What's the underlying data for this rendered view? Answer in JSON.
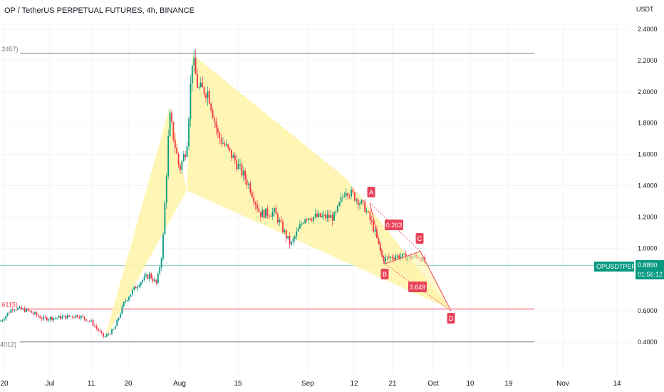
{
  "header": {
    "title": "OP / TetherUS PERPETUAL FUTURES, 4h, BINANCE",
    "unit": "USDT"
  },
  "price_badge": {
    "symbol": "OPUSDTPERP",
    "price": "0.8890",
    "countdown": "01:56:12"
  },
  "level_labels": [
    ".2457)",
    ".6115)",
    "4012)"
  ],
  "colors": {
    "up": "#089981",
    "down": "#f23645",
    "pattern_fill": "#fff3a8",
    "pattern_line": "#e8435a",
    "level_line": "#787b86",
    "fib_line": "#f23645"
  },
  "chart_data": {
    "type": "candlestick",
    "title": "OP / TetherUS PERPETUAL FUTURES, 4h, BINANCE",
    "ylabel": "USDT",
    "ylim": [
      0.3,
      2.55
    ],
    "y_ticks": [
      "2.4000",
      "2.2000",
      "2.0000",
      "1.8000",
      "1.6000",
      "1.4000",
      "1.2000",
      "1.0000",
      "0.6000",
      "0.4000"
    ],
    "x_ticks": [
      "20",
      "Jul",
      "11",
      "20",
      "Aug",
      "15",
      "Sep",
      "12",
      "21",
      "Oct",
      "10",
      "19",
      "Nov",
      "14"
    ],
    "current_price": 0.889,
    "horizontal_levels": [
      2.2457,
      0.6115,
      0.4012
    ],
    "pattern_points": [
      {
        "label": "A",
        "price": 1.29
      },
      {
        "label": "B",
        "price": 0.9
      },
      {
        "label": "C",
        "price": 0.98
      },
      {
        "label": "D",
        "price": 0.6
      }
    ],
    "ratios": [
      "0.263",
      "3.649"
    ],
    "price_path": [
      [
        0,
        0.53
      ],
      [
        18,
        0.62
      ],
      [
        40,
        0.6
      ],
      [
        60,
        0.55
      ],
      [
        90,
        0.56
      ],
      [
        110,
        0.57
      ],
      [
        128,
        0.53
      ],
      [
        146,
        0.43
      ],
      [
        160,
        0.48
      ],
      [
        175,
        0.66
      ],
      [
        195,
        0.78
      ],
      [
        210,
        0.83
      ],
      [
        220,
        0.77
      ],
      [
        228,
        0.99
      ],
      [
        238,
        1.85
      ],
      [
        252,
        1.5
      ],
      [
        262,
        1.65
      ],
      [
        270,
        2.22
      ],
      [
        278,
        2.02
      ],
      [
        292,
        2.0
      ],
      [
        306,
        1.72
      ],
      [
        330,
        1.56
      ],
      [
        350,
        1.4
      ],
      [
        365,
        1.22
      ],
      [
        385,
        1.23
      ],
      [
        408,
        1.02
      ],
      [
        428,
        1.2
      ],
      [
        448,
        1.2
      ],
      [
        470,
        1.2
      ],
      [
        485,
        1.38
      ],
      [
        500,
        1.32
      ],
      [
        512,
        1.26
      ],
      [
        525,
        1.12
      ],
      [
        537,
        0.93
      ],
      [
        555,
        0.95
      ],
      [
        575,
        0.94
      ],
      [
        590,
        0.95
      ],
      [
        598,
        0.89
      ]
    ]
  }
}
